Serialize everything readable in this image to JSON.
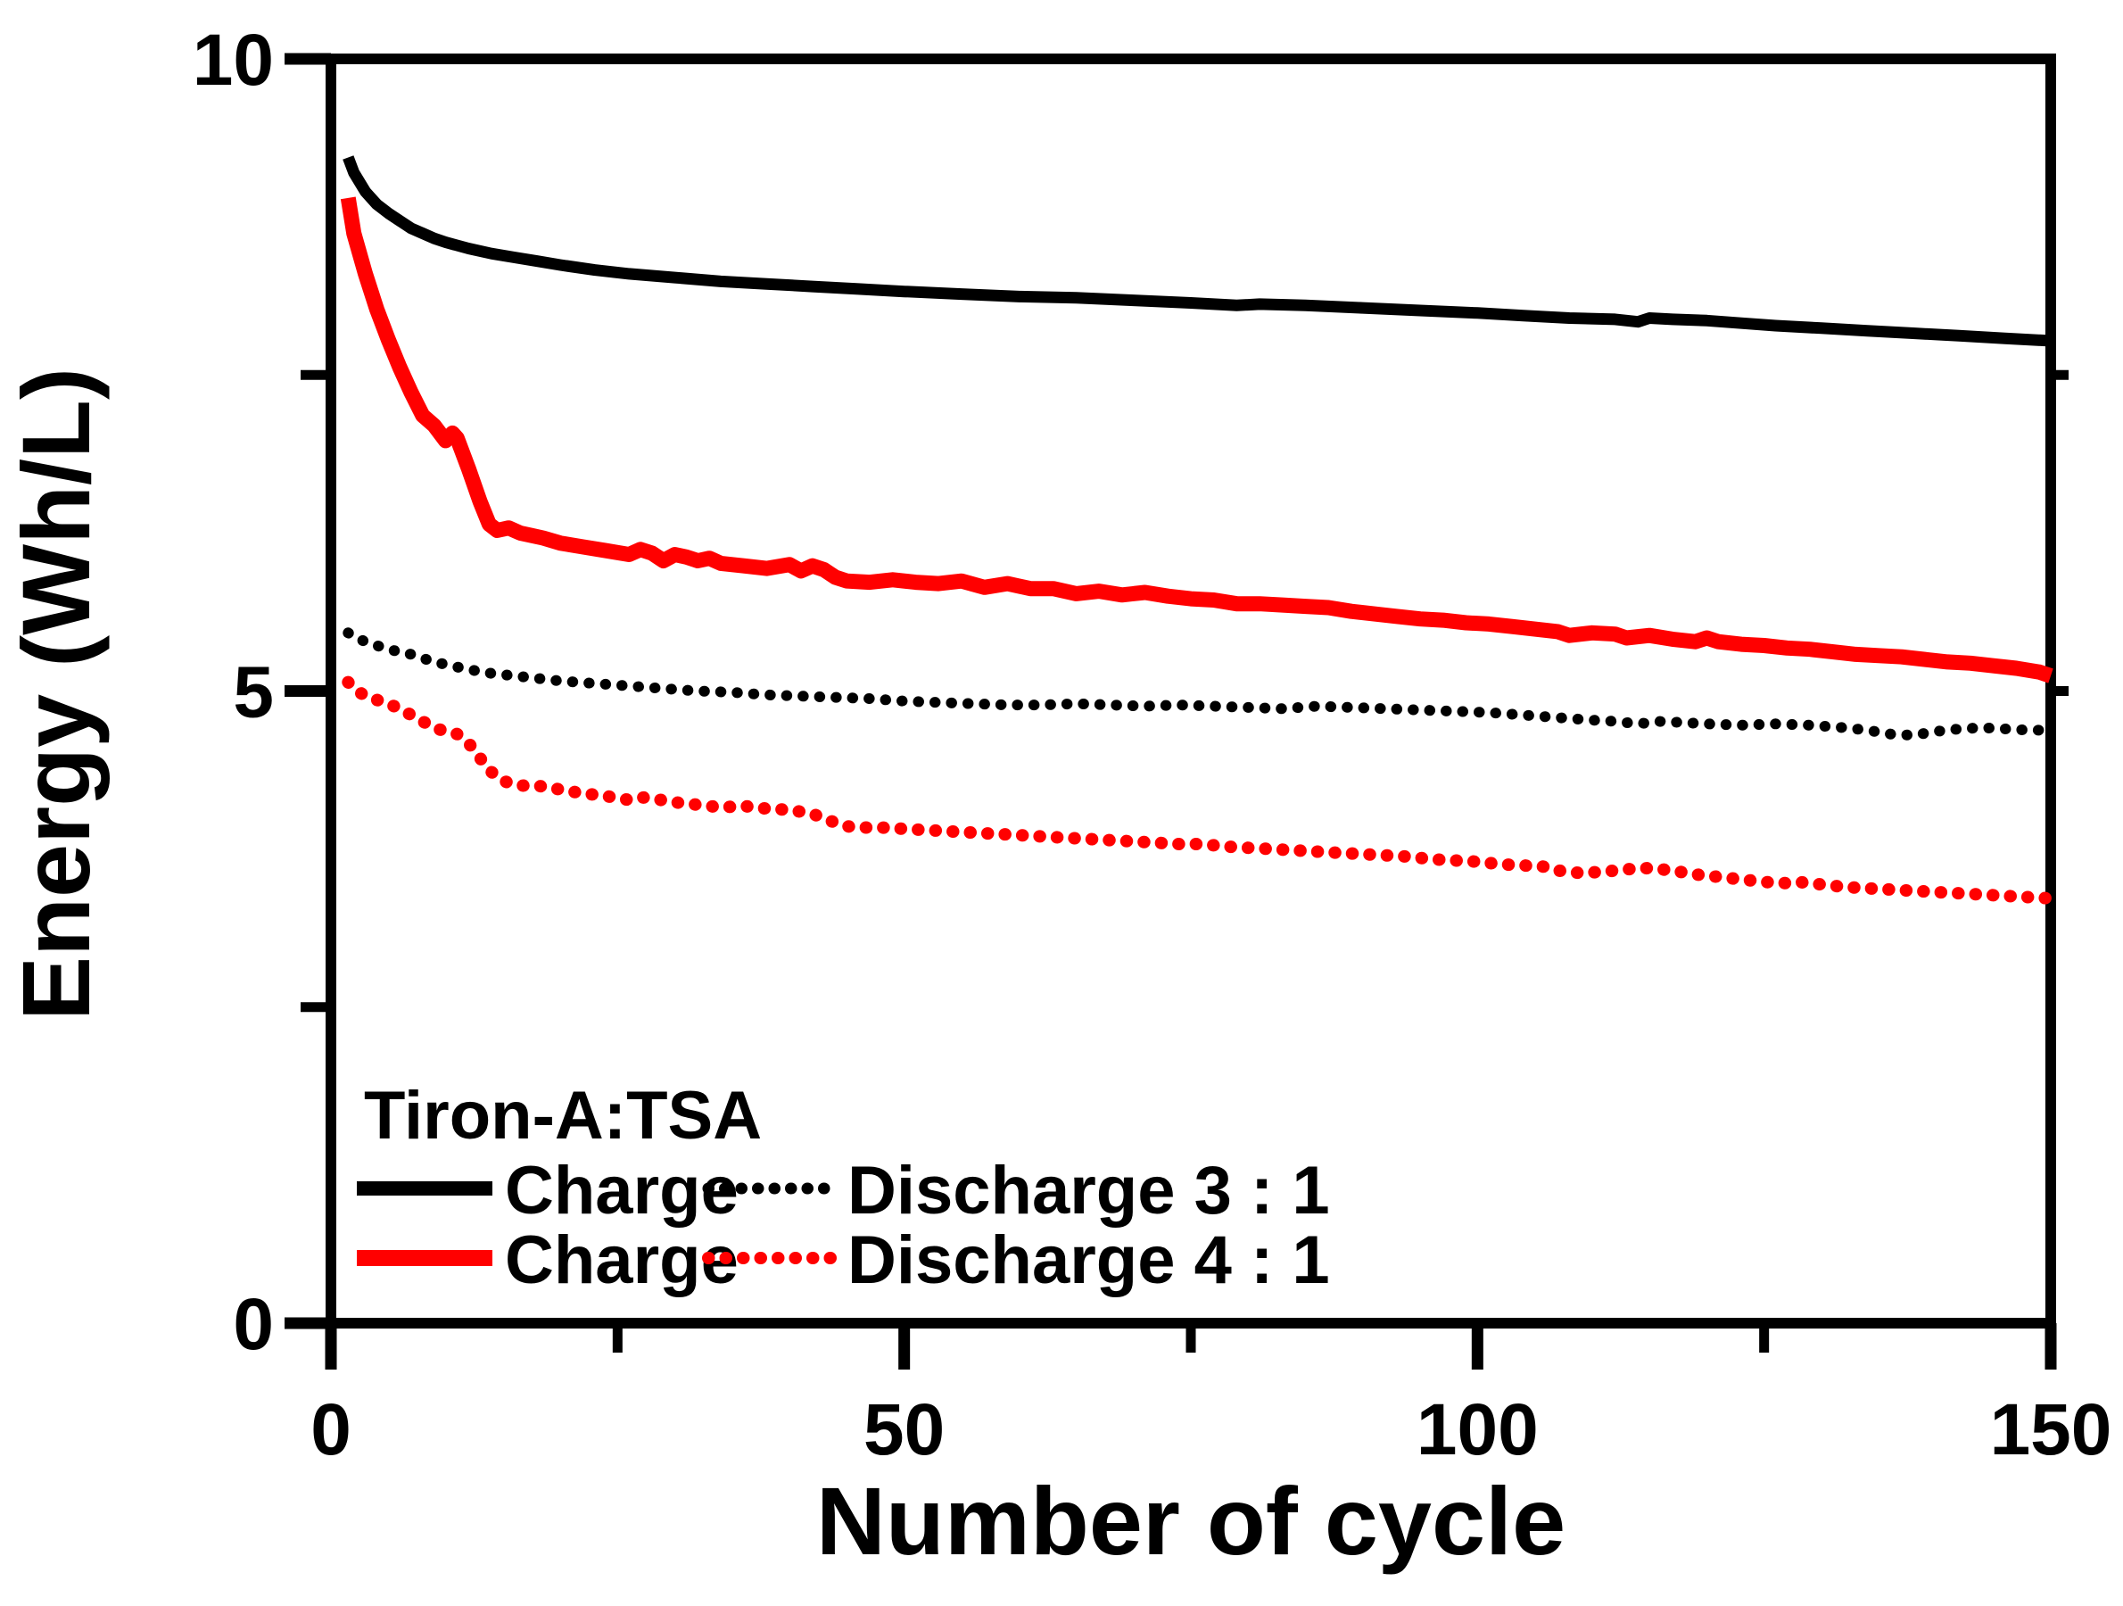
{
  "chart_data": {
    "type": "line",
    "title": "",
    "xlabel": "Number of cycle",
    "ylabel": "Energy (Wh/L)",
    "xlim": [
      0,
      150
    ],
    "ylim": [
      0,
      10
    ],
    "grid": false,
    "x_major_ticks": [
      0,
      50,
      100,
      150
    ],
    "x_minor_ticks": [
      25,
      75,
      125
    ],
    "y_major_ticks": [
      0,
      5,
      10
    ],
    "y_minor_ticks": [
      2.5,
      7.5
    ],
    "y_right_ticks": [
      5,
      7.5
    ],
    "colors": {
      "black": "#000000",
      "red": "#ff0000"
    },
    "legend": {
      "title": "Tiron-A:TSA",
      "position": "bottom-left",
      "rows": [
        {
          "charge_label": "Charge",
          "discharge_label": "Discharge 3 : 1",
          "color": "#000000"
        },
        {
          "charge_label": "Charge",
          "discharge_label": "Discharge 4 : 1",
          "color": "#ff0000"
        }
      ]
    },
    "series": [
      {
        "id": "charge-3-1",
        "name": "Charge (Tiron-A:TSA 3:1)",
        "style": "solid",
        "color": "#000000",
        "points": [
          [
            1.5,
            9.22
          ],
          [
            2,
            9.1
          ],
          [
            3,
            8.95
          ],
          [
            4,
            8.85
          ],
          [
            5,
            8.78
          ],
          [
            6,
            8.72
          ],
          [
            7,
            8.66
          ],
          [
            8,
            8.62
          ],
          [
            9,
            8.58
          ],
          [
            10,
            8.55
          ],
          [
            12,
            8.5
          ],
          [
            14,
            8.46
          ],
          [
            16,
            8.43
          ],
          [
            18,
            8.4
          ],
          [
            20,
            8.37
          ],
          [
            23,
            8.33
          ],
          [
            26,
            8.3
          ],
          [
            30,
            8.27
          ],
          [
            34,
            8.24
          ],
          [
            38,
            8.22
          ],
          [
            42,
            8.2
          ],
          [
            46,
            8.18
          ],
          [
            50,
            8.16
          ],
          [
            55,
            8.14
          ],
          [
            60,
            8.12
          ],
          [
            65,
            8.11
          ],
          [
            70,
            8.09
          ],
          [
            75,
            8.07
          ],
          [
            79,
            8.05
          ],
          [
            81,
            8.06
          ],
          [
            85,
            8.05
          ],
          [
            90,
            8.03
          ],
          [
            95,
            8.01
          ],
          [
            100,
            7.99
          ],
          [
            104,
            7.97
          ],
          [
            108,
            7.95
          ],
          [
            112,
            7.94
          ],
          [
            114,
            7.92
          ],
          [
            115,
            7.95
          ],
          [
            117,
            7.94
          ],
          [
            120,
            7.93
          ],
          [
            123,
            7.91
          ],
          [
            126,
            7.89
          ],
          [
            130,
            7.87
          ],
          [
            134,
            7.85
          ],
          [
            138,
            7.83
          ],
          [
            142,
            7.81
          ],
          [
            146,
            7.79
          ],
          [
            150,
            7.77
          ]
        ]
      },
      {
        "id": "charge-4-1",
        "name": "Charge (Tiron-A:TSA 4:1)",
        "style": "solid",
        "color": "#ff0000",
        "points": [
          [
            1.5,
            8.9
          ],
          [
            2,
            8.62
          ],
          [
            3,
            8.3
          ],
          [
            4,
            8.02
          ],
          [
            5,
            7.78
          ],
          [
            6,
            7.56
          ],
          [
            7,
            7.36
          ],
          [
            8,
            7.18
          ],
          [
            9,
            7.1
          ],
          [
            10,
            6.98
          ],
          [
            10.6,
            7.04
          ],
          [
            11,
            7.0
          ],
          [
            12,
            6.76
          ],
          [
            13,
            6.5
          ],
          [
            13.8,
            6.32
          ],
          [
            14.5,
            6.27
          ],
          [
            15.5,
            6.29
          ],
          [
            16.5,
            6.25
          ],
          [
            17.5,
            6.23
          ],
          [
            18.5,
            6.21
          ],
          [
            20,
            6.17
          ],
          [
            22,
            6.14
          ],
          [
            24,
            6.11
          ],
          [
            26,
            6.08
          ],
          [
            27,
            6.12
          ],
          [
            28,
            6.09
          ],
          [
            29,
            6.03
          ],
          [
            30,
            6.08
          ],
          [
            31,
            6.06
          ],
          [
            32,
            6.03
          ],
          [
            33,
            6.05
          ],
          [
            34,
            6.01
          ],
          [
            36,
            5.99
          ],
          [
            38,
            5.97
          ],
          [
            40,
            6.0
          ],
          [
            41,
            5.95
          ],
          [
            42,
            5.99
          ],
          [
            43,
            5.96
          ],
          [
            44,
            5.9
          ],
          [
            45,
            5.87
          ],
          [
            47,
            5.86
          ],
          [
            49,
            5.88
          ],
          [
            51,
            5.86
          ],
          [
            53,
            5.85
          ],
          [
            55,
            5.87
          ],
          [
            57,
            5.82
          ],
          [
            59,
            5.85
          ],
          [
            61,
            5.81
          ],
          [
            63,
            5.81
          ],
          [
            65,
            5.77
          ],
          [
            67,
            5.79
          ],
          [
            69,
            5.76
          ],
          [
            71,
            5.78
          ],
          [
            73,
            5.75
          ],
          [
            75,
            5.73
          ],
          [
            77,
            5.72
          ],
          [
            79,
            5.69
          ],
          [
            81,
            5.69
          ],
          [
            83,
            5.68
          ],
          [
            85,
            5.67
          ],
          [
            87,
            5.66
          ],
          [
            89,
            5.63
          ],
          [
            91,
            5.61
          ],
          [
            93,
            5.59
          ],
          [
            95,
            5.57
          ],
          [
            97,
            5.56
          ],
          [
            99,
            5.54
          ],
          [
            101,
            5.53
          ],
          [
            103,
            5.51
          ],
          [
            105,
            5.49
          ],
          [
            107,
            5.47
          ],
          [
            108,
            5.44
          ],
          [
            110,
            5.46
          ],
          [
            112,
            5.45
          ],
          [
            113,
            5.42
          ],
          [
            115,
            5.44
          ],
          [
            117,
            5.41
          ],
          [
            119,
            5.39
          ],
          [
            120,
            5.42
          ],
          [
            121,
            5.39
          ],
          [
            123,
            5.37
          ],
          [
            125,
            5.36
          ],
          [
            127,
            5.34
          ],
          [
            129,
            5.33
          ],
          [
            131,
            5.31
          ],
          [
            133,
            5.29
          ],
          [
            135,
            5.28
          ],
          [
            137,
            5.27
          ],
          [
            139,
            5.25
          ],
          [
            141,
            5.23
          ],
          [
            143,
            5.22
          ],
          [
            145,
            5.2
          ],
          [
            147,
            5.18
          ],
          [
            149,
            5.15
          ],
          [
            150,
            5.12
          ]
        ]
      },
      {
        "id": "discharge-3-1",
        "name": "Discharge (Tiron-A:TSA 3:1)",
        "style": "dotted",
        "color": "#000000",
        "points": [
          [
            1.5,
            5.46
          ],
          [
            2,
            5.43
          ],
          [
            3,
            5.39
          ],
          [
            4,
            5.36
          ],
          [
            5,
            5.33
          ],
          [
            6,
            5.31
          ],
          [
            7,
            5.29
          ],
          [
            8,
            5.26
          ],
          [
            9,
            5.23
          ],
          [
            10,
            5.21
          ],
          [
            12,
            5.17
          ],
          [
            14,
            5.14
          ],
          [
            16,
            5.12
          ],
          [
            18,
            5.1
          ],
          [
            20,
            5.08
          ],
          [
            23,
            5.06
          ],
          [
            26,
            5.04
          ],
          [
            29,
            5.02
          ],
          [
            32,
            5.0
          ],
          [
            35,
            4.99
          ],
          [
            38,
            4.97
          ],
          [
            41,
            4.96
          ],
          [
            44,
            4.95
          ],
          [
            47,
            4.94
          ],
          [
            50,
            4.92
          ],
          [
            53,
            4.91
          ],
          [
            56,
            4.9
          ],
          [
            59,
            4.89
          ],
          [
            62,
            4.89
          ],
          [
            65,
            4.9
          ],
          [
            68,
            4.89
          ],
          [
            71,
            4.88
          ],
          [
            74,
            4.89
          ],
          [
            77,
            4.88
          ],
          [
            80,
            4.87
          ],
          [
            83,
            4.86
          ],
          [
            86,
            4.88
          ],
          [
            89,
            4.87
          ],
          [
            92,
            4.86
          ],
          [
            95,
            4.85
          ],
          [
            98,
            4.84
          ],
          [
            101,
            4.83
          ],
          [
            104,
            4.81
          ],
          [
            107,
            4.79
          ],
          [
            110,
            4.77
          ],
          [
            112,
            4.76
          ],
          [
            114,
            4.74
          ],
          [
            116,
            4.76
          ],
          [
            118,
            4.75
          ],
          [
            120,
            4.74
          ],
          [
            123,
            4.73
          ],
          [
            126,
            4.74
          ],
          [
            129,
            4.73
          ],
          [
            132,
            4.71
          ],
          [
            134,
            4.69
          ],
          [
            136,
            4.66
          ],
          [
            138,
            4.65
          ],
          [
            140,
            4.68
          ],
          [
            142,
            4.7
          ],
          [
            144,
            4.71
          ],
          [
            146,
            4.7
          ],
          [
            148,
            4.69
          ],
          [
            150,
            4.69
          ]
        ]
      },
      {
        "id": "discharge-4-1",
        "name": "Discharge (Tiron-A:TSA 4:1)",
        "style": "dotted",
        "color": "#ff0000",
        "points": [
          [
            1.5,
            5.07
          ],
          [
            2,
            5.02
          ],
          [
            3,
            4.96
          ],
          [
            4,
            4.93
          ],
          [
            5,
            4.9
          ],
          [
            6,
            4.86
          ],
          [
            7,
            4.81
          ],
          [
            8,
            4.76
          ],
          [
            9,
            4.71
          ],
          [
            10,
            4.68
          ],
          [
            11,
            4.66
          ],
          [
            12,
            4.59
          ],
          [
            13,
            4.47
          ],
          [
            14,
            4.36
          ],
          [
            15,
            4.29
          ],
          [
            16,
            4.26
          ],
          [
            17,
            4.25
          ],
          [
            18,
            4.25
          ],
          [
            19,
            4.24
          ],
          [
            20,
            4.22
          ],
          [
            22,
            4.19
          ],
          [
            24,
            4.17
          ],
          [
            25,
            4.15
          ],
          [
            26,
            4.14
          ],
          [
            27,
            4.16
          ],
          [
            28,
            4.15
          ],
          [
            30,
            4.12
          ],
          [
            32,
            4.1
          ],
          [
            34,
            4.08
          ],
          [
            36,
            4.09
          ],
          [
            38,
            4.07
          ],
          [
            40,
            4.06
          ],
          [
            42,
            4.03
          ],
          [
            43,
            3.99
          ],
          [
            44,
            3.96
          ],
          [
            45,
            3.93
          ],
          [
            46,
            3.92
          ],
          [
            48,
            3.92
          ],
          [
            50,
            3.91
          ],
          [
            52,
            3.9
          ],
          [
            54,
            3.89
          ],
          [
            56,
            3.88
          ],
          [
            58,
            3.87
          ],
          [
            60,
            3.86
          ],
          [
            62,
            3.85
          ],
          [
            64,
            3.84
          ],
          [
            66,
            3.83
          ],
          [
            68,
            3.82
          ],
          [
            70,
            3.81
          ],
          [
            72,
            3.8
          ],
          [
            74,
            3.79
          ],
          [
            76,
            3.79
          ],
          [
            78,
            3.77
          ],
          [
            80,
            3.76
          ],
          [
            82,
            3.75
          ],
          [
            84,
            3.74
          ],
          [
            86,
            3.73
          ],
          [
            88,
            3.72
          ],
          [
            90,
            3.71
          ],
          [
            92,
            3.7
          ],
          [
            94,
            3.69
          ],
          [
            96,
            3.67
          ],
          [
            98,
            3.66
          ],
          [
            100,
            3.65
          ],
          [
            102,
            3.63
          ],
          [
            104,
            3.62
          ],
          [
            106,
            3.61
          ],
          [
            107,
            3.58
          ],
          [
            109,
            3.56
          ],
          [
            111,
            3.57
          ],
          [
            113,
            3.59
          ],
          [
            115,
            3.6
          ],
          [
            117,
            3.58
          ],
          [
            119,
            3.55
          ],
          [
            121,
            3.53
          ],
          [
            123,
            3.51
          ],
          [
            125,
            3.49
          ],
          [
            127,
            3.48
          ],
          [
            128,
            3.49
          ],
          [
            130,
            3.47
          ],
          [
            132,
            3.45
          ],
          [
            134,
            3.44
          ],
          [
            136,
            3.43
          ],
          [
            138,
            3.42
          ],
          [
            140,
            3.41
          ],
          [
            142,
            3.4
          ],
          [
            144,
            3.39
          ],
          [
            146,
            3.38
          ],
          [
            148,
            3.37
          ],
          [
            150,
            3.36
          ]
        ]
      }
    ]
  }
}
